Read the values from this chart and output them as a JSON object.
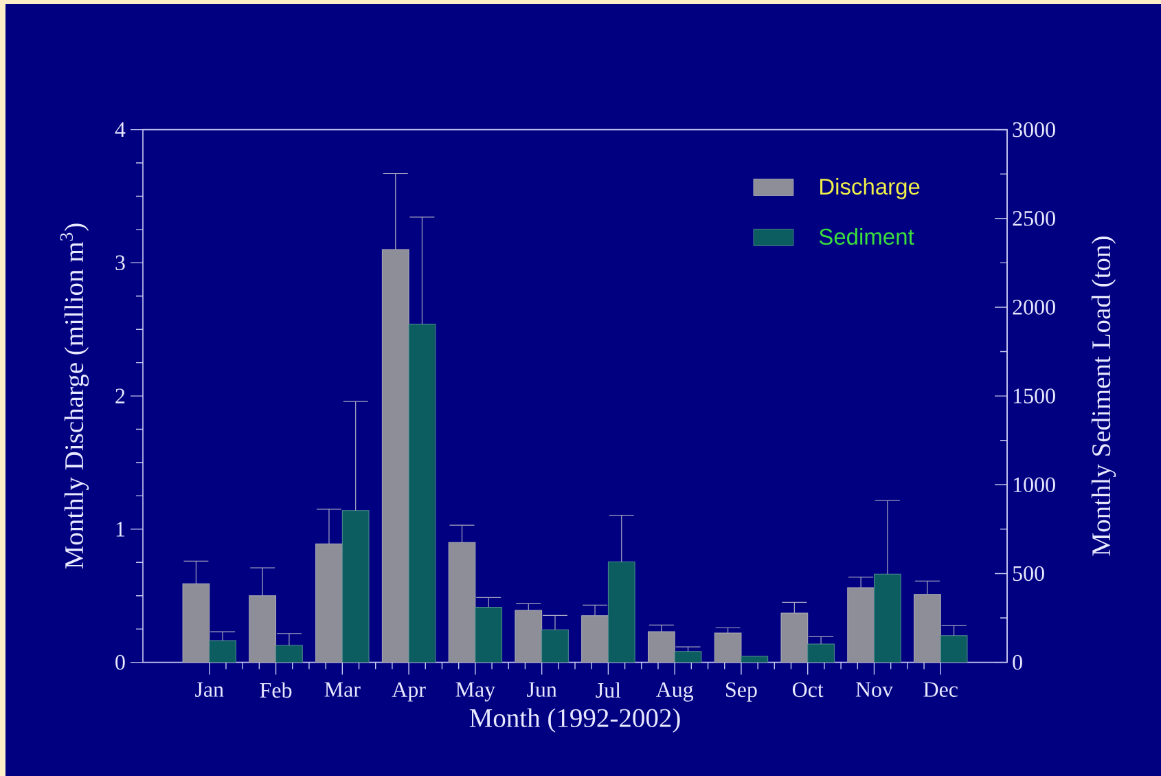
{
  "chart_data": {
    "type": "bar",
    "xlabel": "Month (1992-2002)",
    "ylabel": "Monthly Discharge (million m$^{3}$)",
    "y2label": "Monthly Sediment Load (ton)",
    "categories": [
      "Jan",
      "Feb",
      "Mar",
      "Apr",
      "May",
      "Jun",
      "Jul",
      "Aug",
      "Sep",
      "Oct",
      "Nov",
      "Dec"
    ],
    "series": [
      {
        "name": "Discharge",
        "color": "#8e8e98",
        "values": [
          0.59,
          0.5,
          0.89,
          3.1,
          0.9,
          0.39,
          0.35,
          0.23,
          0.22,
          0.37,
          0.56,
          0.51
        ],
        "errors": [
          [
            0.59,
            0.76
          ],
          [
            0.5,
            0.71
          ],
          [
            0.89,
            1.15
          ],
          [
            3.1,
            3.67
          ],
          [
            0.9,
            1.03
          ],
          [
            0.39,
            0.44
          ],
          [
            0.35,
            0.43
          ],
          [
            0.23,
            0.28
          ],
          [
            0.22,
            0.26
          ],
          [
            0.37,
            0.45
          ],
          [
            0.56,
            0.64
          ],
          [
            0.51,
            0.61
          ]
        ]
      },
      {
        "name": "Sediment",
        "color": "#0b5d60",
        "axis": "y2",
        "values": [
          122,
          95,
          855,
          1905,
          310,
          183,
          566,
          61,
          34,
          103,
          497,
          150
        ],
        "errors": [
          [
            122,
            172
          ],
          [
            95,
            162
          ],
          [
            855,
            1469
          ],
          [
            1905,
            2507
          ],
          [
            310,
            365
          ],
          [
            183,
            264
          ],
          [
            566,
            828
          ],
          [
            61,
            87
          ],
          null,
          [
            103,
            144
          ],
          [
            497,
            911
          ],
          [
            150,
            207
          ]
        ]
      }
    ],
    "ylim": [
      0,
      4
    ],
    "yticks": [
      0,
      1,
      2,
      3,
      4
    ],
    "y2lim": [
      0,
      3000
    ],
    "y2ticks": [
      0,
      500,
      1000,
      1500,
      2000,
      2500,
      3000
    ],
    "legend": "top right"
  }
}
